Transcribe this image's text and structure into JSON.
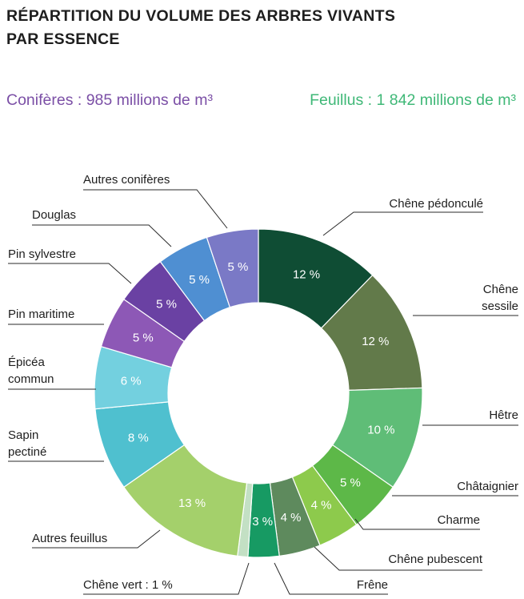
{
  "title_line1": "RÉPARTITION DU VOLUME DES ARBRES VIVANTS",
  "title_line2": "PAR ESSENCE",
  "coniferes_total": "Conifères : 985 millions de m³",
  "feuillus_total": "Feuillus : 1 842 millions de m³",
  "chart_data": {
    "type": "pie",
    "title": "RÉPARTITION DU VOLUME DES ARBRES VIVANTS PAR ESSENCE",
    "donut": true,
    "unit": "%",
    "slices": [
      {
        "name": "Chêne pédonculé",
        "label_lines": [
          "Chêne pédonculé"
        ],
        "value": 12,
        "pct_label": "12 %",
        "color": "#0f4d34",
        "group": "Feuillus"
      },
      {
        "name": "Chêne sessile",
        "label_lines": [
          "Chêne",
          "sessile"
        ],
        "value": 12,
        "pct_label": "12 %",
        "color": "#627a4a",
        "group": "Feuillus"
      },
      {
        "name": "Hêtre",
        "label_lines": [
          "Hêtre"
        ],
        "value": 10,
        "pct_label": "10 %",
        "color": "#5fbd77",
        "group": "Feuillus"
      },
      {
        "name": "Châtaignier",
        "label_lines": [
          "Châtaignier"
        ],
        "value": 5,
        "pct_label": "5 %",
        "color": "#5db848",
        "group": "Feuillus"
      },
      {
        "name": "Charme",
        "label_lines": [
          "Charme"
        ],
        "value": 4,
        "pct_label": "4 %",
        "color": "#8dca4c",
        "group": "Feuillus"
      },
      {
        "name": "Chêne pubescent",
        "label_lines": [
          "Chêne pubescent"
        ],
        "value": 4,
        "pct_label": "4 %",
        "color": "#5e8a5d",
        "group": "Feuillus"
      },
      {
        "name": "Frêne",
        "label_lines": [
          "Frêne"
        ],
        "value": 3,
        "pct_label": "3 %",
        "color": "#179a63",
        "group": "Feuillus"
      },
      {
        "name": "Chêne vert",
        "label_lines": [
          "Chêne vert : 1 %"
        ],
        "value": 1,
        "pct_label": "",
        "color": "#c3e0c4",
        "group": "Feuillus"
      },
      {
        "name": "Autres feuillus",
        "label_lines": [
          "Autres feuillus"
        ],
        "value": 13,
        "pct_label": "13 %",
        "color": "#a4d06b",
        "group": "Feuillus"
      },
      {
        "name": "Sapin pectiné",
        "label_lines": [
          "Sapin",
          "pectiné"
        ],
        "value": 8,
        "pct_label": "8 %",
        "color": "#4fc0cf",
        "group": "Conifères"
      },
      {
        "name": "Épicéa commun",
        "label_lines": [
          "Épicéa",
          "commun"
        ],
        "value": 6,
        "pct_label": "6 %",
        "color": "#73d0df",
        "group": "Conifères"
      },
      {
        "name": "Pin maritime",
        "label_lines": [
          "Pin maritime"
        ],
        "value": 5,
        "pct_label": "5 %",
        "color": "#8d58b6",
        "group": "Conifères"
      },
      {
        "name": "Pin sylvestre",
        "label_lines": [
          "Pin sylvestre"
        ],
        "value": 5,
        "pct_label": "5 %",
        "color": "#6a41a3",
        "group": "Conifères"
      },
      {
        "name": "Douglas",
        "label_lines": [
          "Douglas"
        ],
        "value": 5,
        "pct_label": "5 %",
        "color": "#4f8fd2",
        "group": "Conifères"
      },
      {
        "name": "Autres conifères",
        "label_lines": [
          "Autres conifères"
        ],
        "value": 5,
        "pct_label": "5 %",
        "color": "#7a79c6",
        "group": "Conifères"
      }
    ]
  }
}
